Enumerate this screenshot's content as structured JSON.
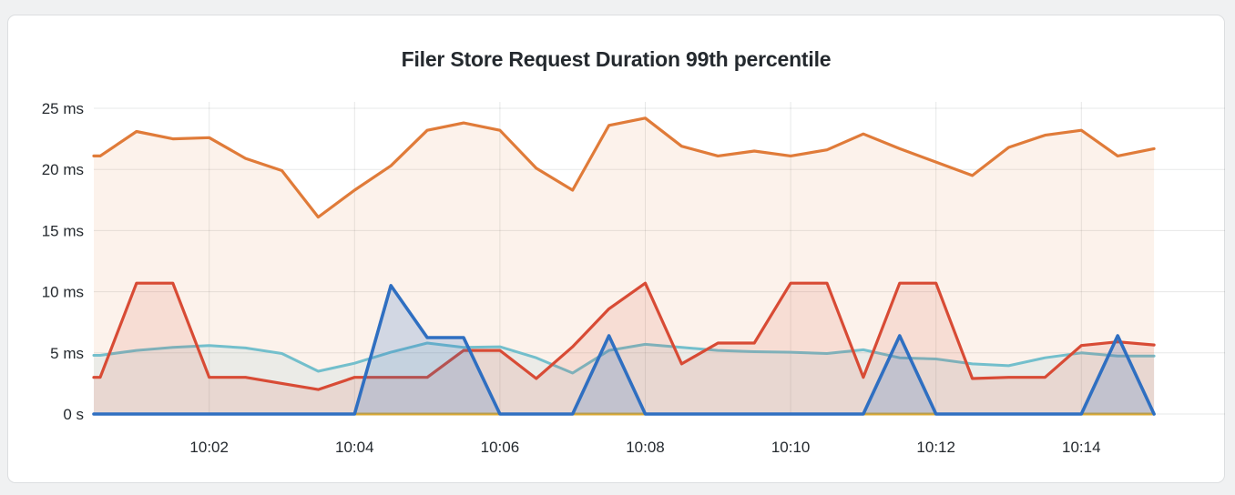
{
  "panel": {
    "title": "Filer Store Request Duration 99th percentile"
  },
  "colors": {
    "panel_background": "#ffffff",
    "page_background": "#f0f1f2",
    "panel_border": "#dcdee0",
    "grid": "rgba(36,41,46,0.11)",
    "text": "#24292e"
  },
  "chart_data": {
    "type": "line",
    "title": "Filer Store Request Duration 99th percentile",
    "unit": "ms",
    "grid": true,
    "legend_position": "none",
    "x_start_time": "10:00:30",
    "x_interval_seconds": 30,
    "x_tick_labels": [
      "10:02",
      "10:04",
      "10:06",
      "10:08",
      "10:10",
      "10:12",
      "10:14"
    ],
    "x_tick_indices": [
      3,
      7,
      11,
      15,
      19,
      23,
      27
    ],
    "y_tick_labels": [
      "25 ms",
      "20 ms",
      "15 ms",
      "10 ms",
      "5 ms",
      "0 s"
    ],
    "y_tick_values": [
      25,
      20,
      15,
      10,
      5,
      0
    ],
    "ylim": [
      0,
      26.7
    ],
    "series": [
      {
        "name": "orange",
        "color": "#e07b39",
        "fill_opacity": 0.1,
        "line_width": 3.2,
        "values": [
          21.1,
          23.1,
          22.5,
          22.6,
          20.9,
          19.9,
          16.1,
          18.3,
          20.3,
          23.2,
          23.8,
          23.2,
          20.1,
          18.3,
          23.6,
          24.2,
          21.9,
          21.1,
          21.5,
          21.1,
          21.6,
          22.9,
          21.7,
          20.6,
          19.5,
          21.8,
          22.8,
          23.2,
          21.1,
          21.7
        ]
      },
      {
        "name": "light-blue",
        "color": "#73bfcc",
        "fill_opacity": 0.12,
        "line_width": 3,
        "values": [
          4.8,
          5.2,
          5.45,
          5.6,
          5.4,
          4.95,
          3.5,
          4.15,
          5.05,
          5.8,
          5.45,
          5.5,
          4.6,
          3.35,
          5.2,
          5.7,
          5.45,
          5.2,
          5.1,
          5.05,
          4.95,
          5.25,
          4.6,
          4.5,
          4.1,
          3.95,
          4.6,
          5.0,
          4.75,
          4.75
        ]
      },
      {
        "name": "red",
        "color": "#d84b35",
        "fill_opacity": 0.12,
        "line_width": 3.2,
        "values": [
          3.0,
          10.7,
          10.7,
          3.0,
          3.0,
          2.5,
          2.0,
          3.0,
          3.0,
          3.0,
          5.2,
          5.2,
          2.9,
          5.5,
          8.6,
          10.7,
          4.1,
          5.8,
          5.8,
          10.7,
          10.7,
          3.0,
          10.7,
          10.7,
          2.9,
          3.0,
          3.0,
          5.6,
          5.9,
          5.65
        ]
      },
      {
        "name": "yellow",
        "color": "#d9a935",
        "fill_opacity": 0.1,
        "line_width": 3,
        "values": [
          0,
          0,
          0,
          0,
          0,
          0,
          0,
          0,
          0,
          0,
          0,
          0,
          0,
          0,
          0,
          0,
          0,
          0,
          0,
          0,
          0,
          0,
          0,
          0,
          0,
          0,
          0,
          0,
          0,
          0
        ]
      },
      {
        "name": "blue",
        "color": "#2f6fc1",
        "fill_opacity": 0.2,
        "line_width": 3.6,
        "values": [
          0,
          0,
          0,
          0,
          0,
          0,
          0,
          0,
          10.5,
          6.25,
          6.25,
          0,
          0,
          0,
          6.4,
          0,
          0,
          0,
          0,
          0,
          0,
          0,
          6.4,
          0,
          0,
          0,
          0,
          0,
          6.4,
          0
        ]
      }
    ]
  }
}
